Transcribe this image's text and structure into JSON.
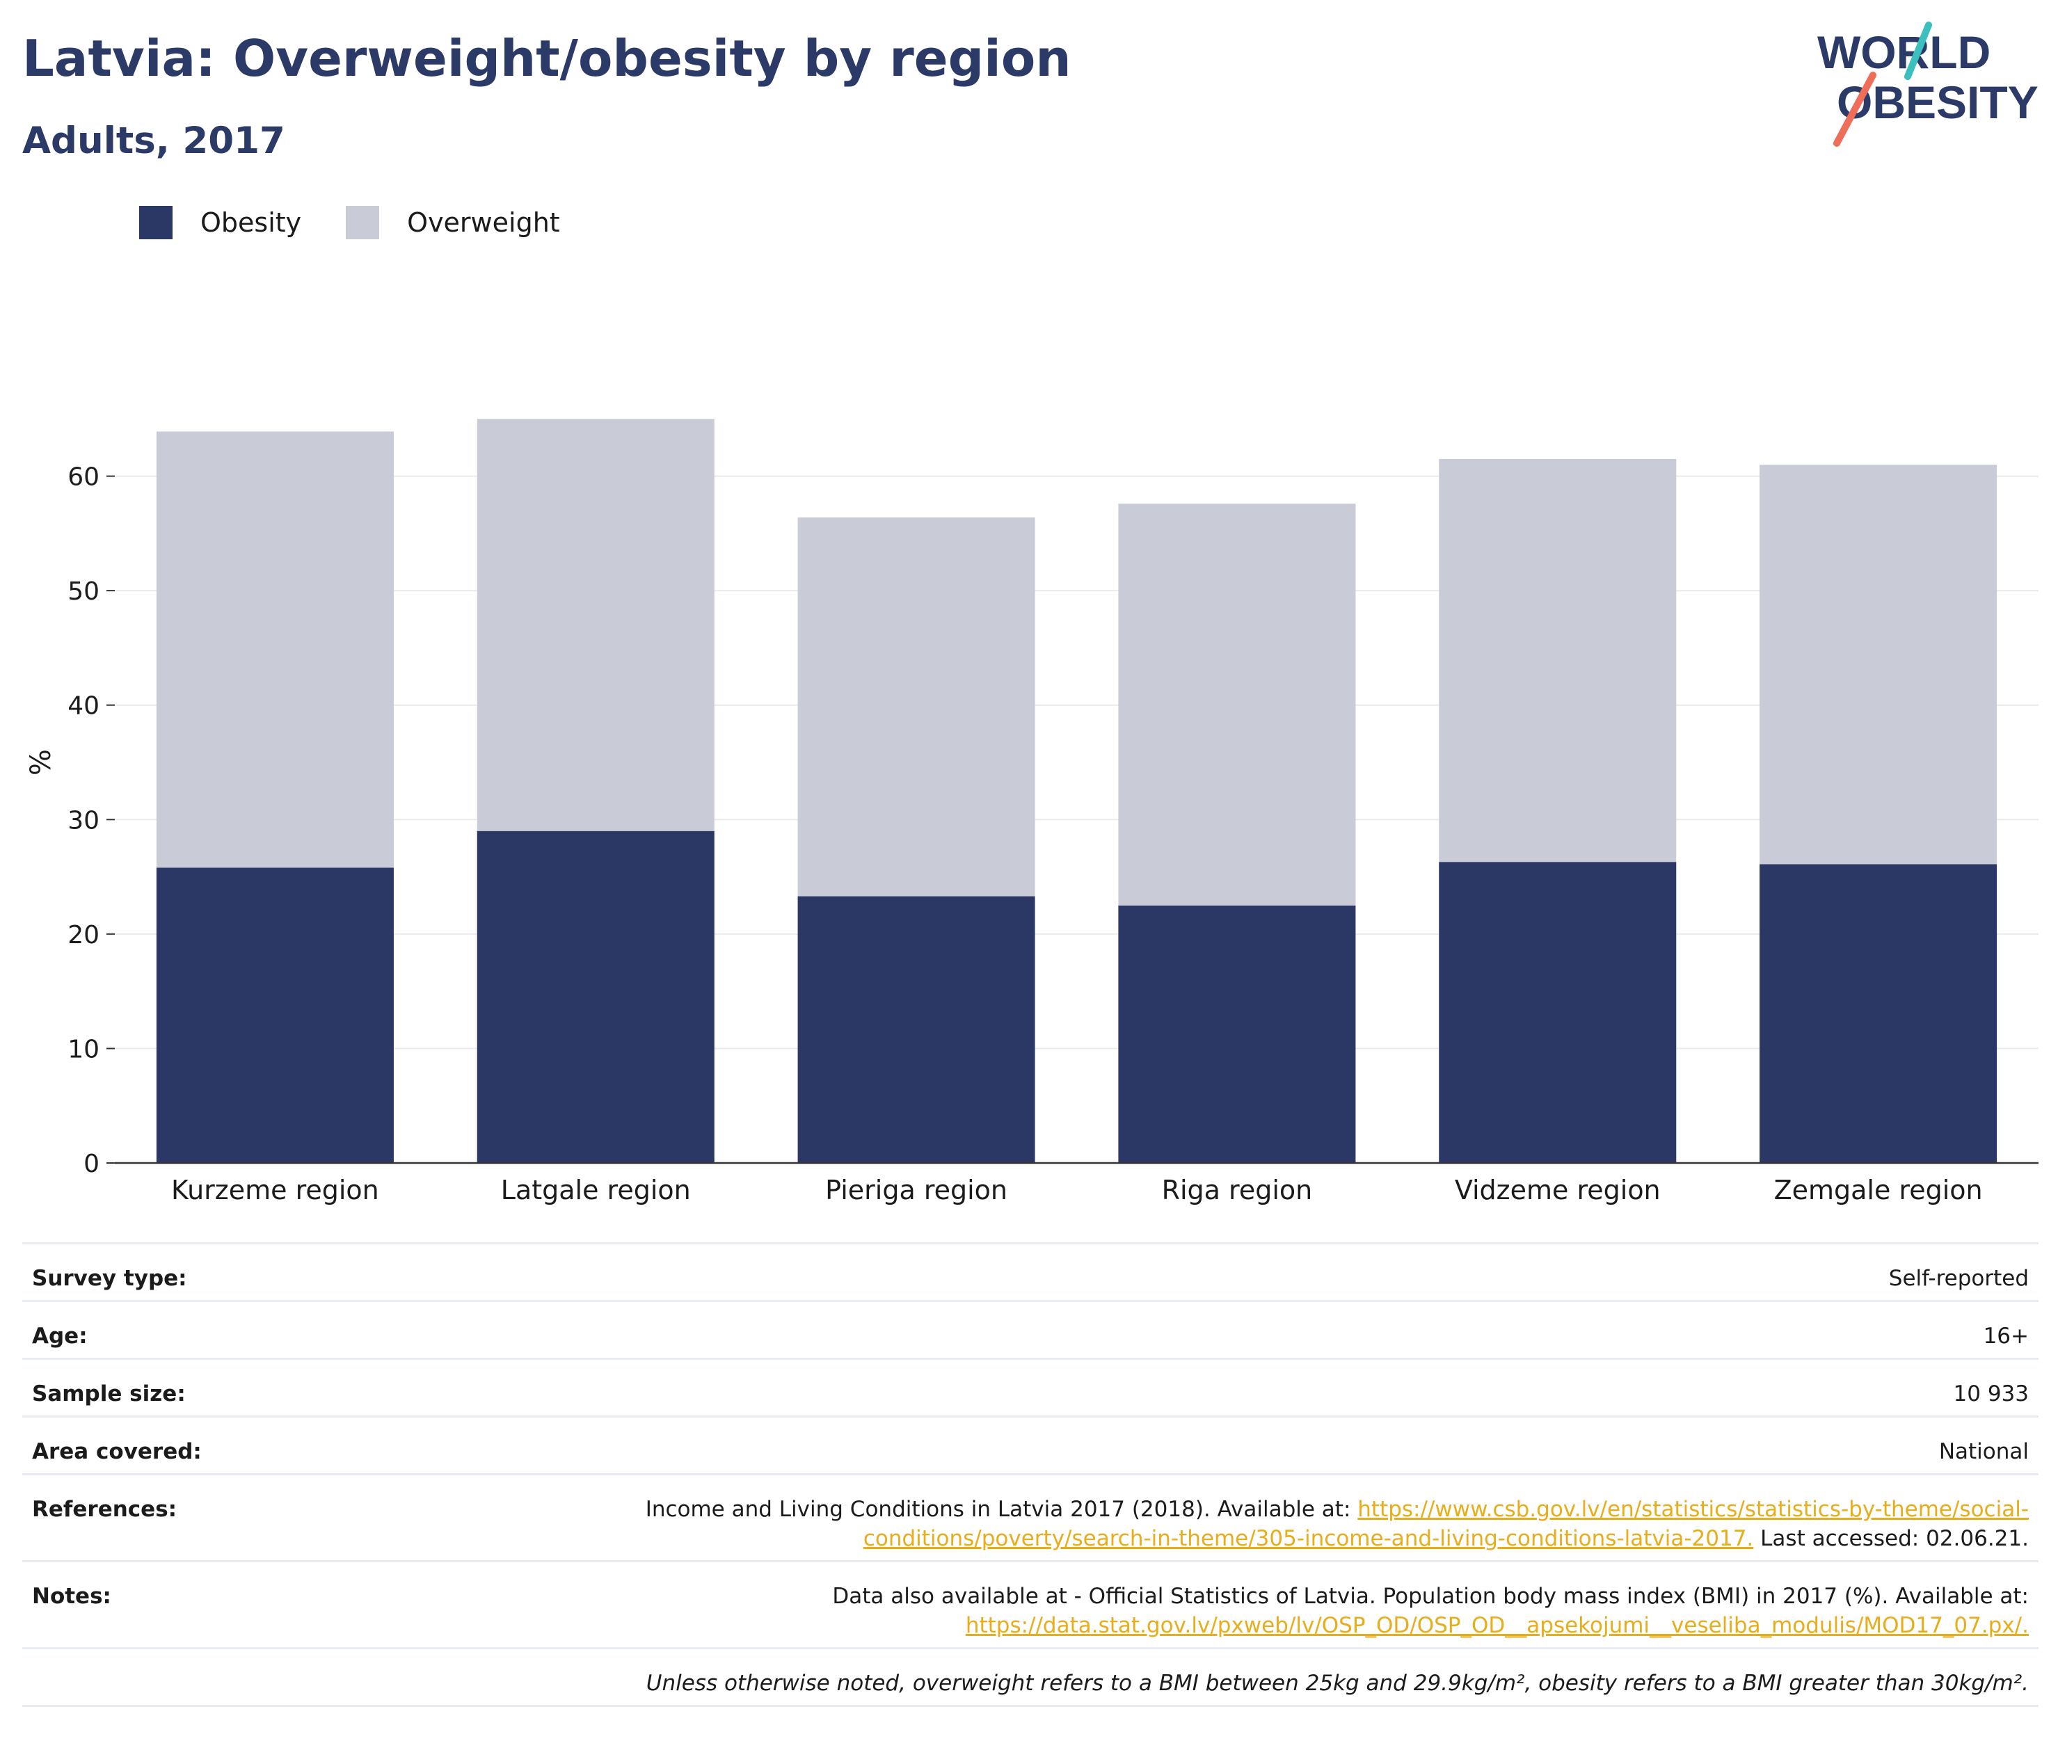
{
  "header": {
    "title": "Latvia: Overweight/obesity by region",
    "subtitle": "Adults, 2017"
  },
  "logo": {
    "line1": "WORLD",
    "line2": "OBESITY",
    "accent_teal": "#3bbfbf",
    "accent_coral": "#ef6e5a",
    "text_color": "#2b3a67"
  },
  "legend": [
    {
      "label": "Obesity",
      "color": "#2b3764"
    },
    {
      "label": "Overweight",
      "color": "#c9cbd7"
    }
  ],
  "chart_data": {
    "type": "bar",
    "stacked": true,
    "categories": [
      "Kurzeme region",
      "Latgale region",
      "Pieriga region",
      "Riga region",
      "Vidzeme region",
      "Zemgale region"
    ],
    "series": [
      {
        "name": "Obesity",
        "values": [
          25.8,
          29.0,
          23.3,
          22.5,
          26.3,
          26.1
        ],
        "color": "#2b3764"
      },
      {
        "name": "Overweight",
        "values": [
          38.1,
          36.0,
          33.1,
          35.1,
          35.2,
          34.9
        ],
        "color": "#c9cbd7"
      }
    ],
    "ylabel": "%",
    "ylim": [
      0,
      70
    ],
    "yticks": [
      0,
      10,
      20,
      30,
      40,
      50,
      60
    ],
    "grid": true,
    "legend_position": "top-left"
  },
  "meta": {
    "survey_type": {
      "label": "Survey type:",
      "value": "Self-reported"
    },
    "age": {
      "label": "Age:",
      "value": "16+"
    },
    "sample_size": {
      "label": "Sample size:",
      "value": "10 933"
    },
    "area": {
      "label": "Area covered:",
      "value": "National"
    },
    "references": {
      "label": "References:",
      "text": "Income and Living Conditions in Latvia 2017 (2018). Available at: ",
      "link_a": "https://www.csb.gov.lv/en/statistics/statistics-by-theme/social-",
      "link_b": "conditions/poverty/search-in-theme/305-income-and-living-conditions-latvia-2017.",
      "tail": " Last accessed: 02.06.21."
    },
    "notes": {
      "label": "Notes:",
      "text": "Data also available at - Official Statistics of Latvia. Population body mass index (BMI) in 2017 (%). Available at:",
      "link": "https://data.stat.gov.lv/pxweb/lv/OSP_OD/OSP_OD__apsekojumi__veseliba_modulis/MOD17_07.px/."
    },
    "footnote": "Unless otherwise noted, overweight refers to a BMI between 25kg and 29.9kg/m², obesity refers to a BMI greater than 30kg/m²."
  }
}
